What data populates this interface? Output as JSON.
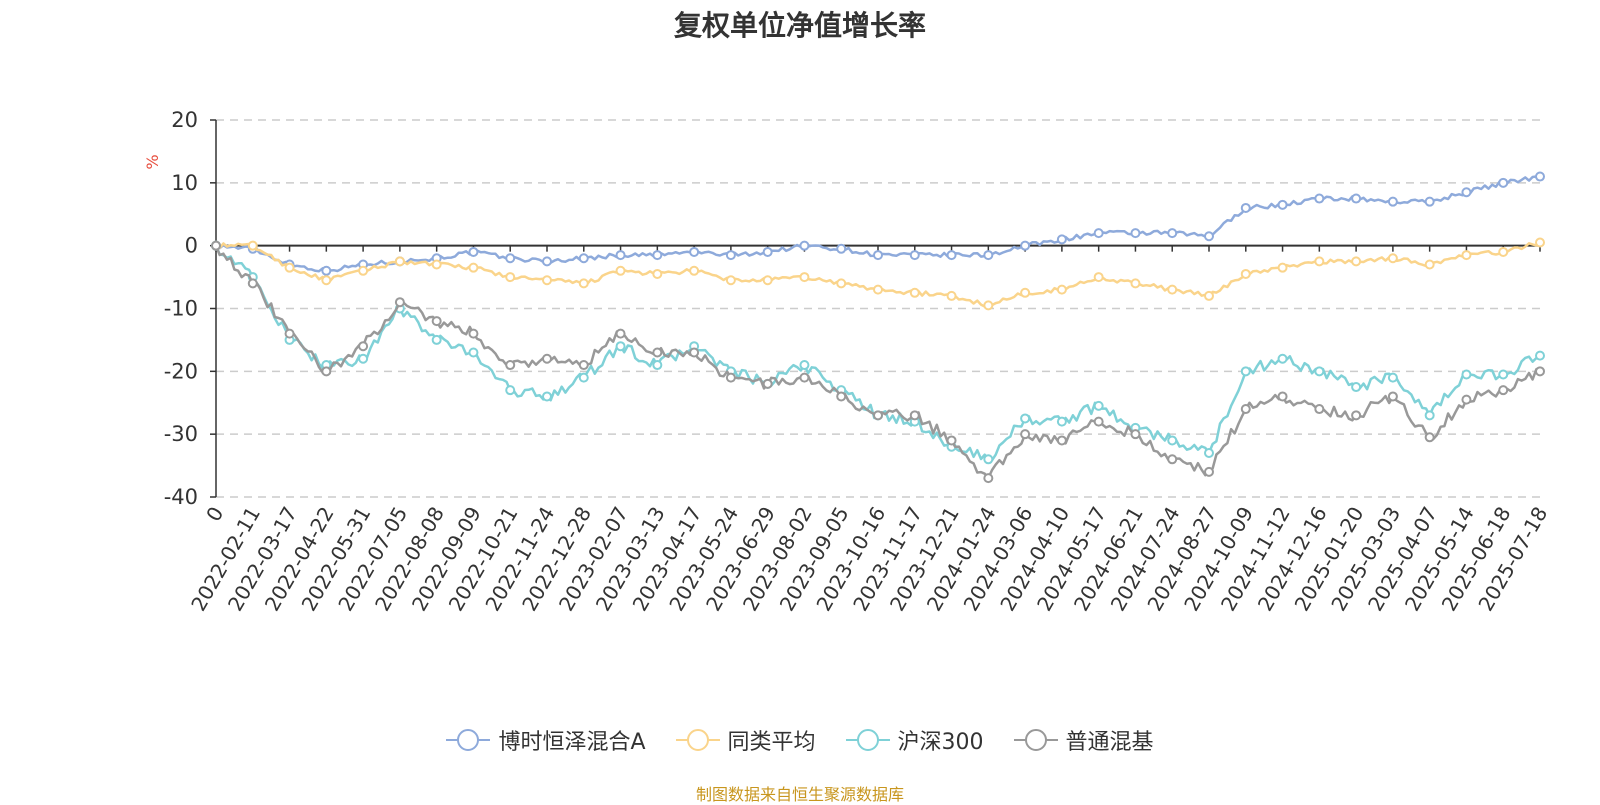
{
  "chart_data": {
    "type": "line",
    "title": "复权单位净值增长率",
    "ylabel": "%",
    "ylim": [
      -40,
      20
    ],
    "yticks": [
      20,
      10,
      0,
      -10,
      -20,
      -30,
      -40
    ],
    "grid": true,
    "legend_position": "bottom",
    "x": [
      "0",
      "2022-02-11",
      "2022-03-17",
      "2022-04-22",
      "2022-05-31",
      "2022-07-05",
      "2022-08-08",
      "2022-09-09",
      "2022-10-21",
      "2022-11-24",
      "2022-12-28",
      "2023-02-07",
      "2023-03-13",
      "2023-04-17",
      "2023-05-24",
      "2023-06-29",
      "2023-08-02",
      "2023-09-05",
      "2023-10-16",
      "2023-11-17",
      "2023-12-21",
      "2024-01-24",
      "2024-03-06",
      "2024-04-10",
      "2024-05-17",
      "2024-06-21",
      "2024-07-24",
      "2024-08-27",
      "2024-10-09",
      "2024-11-12",
      "2024-12-16",
      "2025-01-20",
      "2025-03-03",
      "2025-04-07",
      "2025-05-14",
      "2025-06-18",
      "2025-07-18"
    ],
    "series": [
      {
        "name": "博时恒泽混合A",
        "color": "#8eaadb",
        "values": [
          0,
          -0.5,
          -3,
          -4,
          -3,
          -2.5,
          -2,
          -1,
          -2,
          -2.5,
          -2,
          -1.5,
          -1.5,
          -1,
          -1.5,
          -1,
          0,
          -0.5,
          -1.5,
          -1.5,
          -1.5,
          -1.5,
          0,
          1,
          2,
          2,
          2,
          1.5,
          6,
          6.5,
          7.5,
          7.5,
          7,
          7,
          8.5,
          10,
          11
        ]
      },
      {
        "name": "同类平均",
        "color": "#fad48b",
        "values": [
          0,
          0,
          -3.5,
          -5.5,
          -4,
          -2.5,
          -3,
          -3.5,
          -5,
          -5.5,
          -6,
          -4,
          -4.5,
          -4,
          -5.5,
          -5.5,
          -5,
          -6,
          -7,
          -7.5,
          -8,
          -9.5,
          -7.5,
          -7,
          -5,
          -6,
          -7,
          -8,
          -4.5,
          -3.5,
          -2.5,
          -2.5,
          -2,
          -3,
          -1.5,
          -1,
          0.5
        ]
      },
      {
        "name": "沪深300",
        "color": "#7fd1d7",
        "values": [
          0,
          -5,
          -15,
          -19,
          -18,
          -10,
          -15,
          -17,
          -23,
          -24,
          -21,
          -16,
          -19,
          -16,
          -20,
          -22,
          -19,
          -23,
          -27,
          -28,
          -32,
          -34,
          -27.5,
          -28,
          -25.5,
          -29,
          -31,
          -33,
          -20,
          -18,
          -20,
          -22.5,
          -21,
          -27,
          -20.5,
          -20.5,
          -17.5
        ]
      },
      {
        "name": "普通混基",
        "color": "#999999",
        "values": [
          0,
          -6,
          -14,
          -20,
          -16,
          -9,
          -12,
          -14,
          -19,
          -18,
          -19,
          -14,
          -17,
          -17,
          -21,
          -22,
          -21,
          -24,
          -27,
          -27,
          -31,
          -37,
          -30,
          -31,
          -28,
          -30,
          -34,
          -36,
          -26,
          -24,
          -26,
          -27,
          -24,
          -30.5,
          -24.5,
          -23,
          -20
        ]
      }
    ]
  },
  "legend_icon_names": [
    "circle-line-icon",
    "circle-line-icon",
    "circle-line-icon",
    "circle-line-icon"
  ],
  "source_note": "制图数据来自恒生聚源数据库"
}
